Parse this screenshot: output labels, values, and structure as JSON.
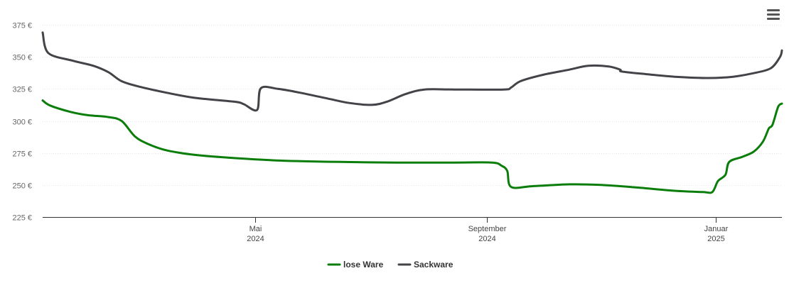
{
  "chart_data": {
    "type": "line",
    "title": "",
    "xlabel": "",
    "ylabel": "",
    "ylim": [
      225,
      375
    ],
    "yticks": [
      225,
      250,
      275,
      300,
      325,
      350,
      375
    ],
    "ytick_labels": [
      "225 €",
      "250 €",
      "275 €",
      "300 €",
      "325 €",
      "350 €",
      "375 €"
    ],
    "xlim": [
      "2024-01-09",
      "2025-02-05"
    ],
    "xticks": [
      {
        "date": "2024-05-01",
        "month": "Mai",
        "year": "2024"
      },
      {
        "date": "2024-09-01",
        "month": "September",
        "year": "2024"
      },
      {
        "date": "2025-01-01",
        "month": "Januar",
        "year": "2025"
      }
    ],
    "grid": "horizontal",
    "legend": "bottom-center",
    "series": [
      {
        "name": "lose Ware",
        "color": "#0a7d0a",
        "points": [
          [
            "2024-01-09",
            316
          ],
          [
            "2024-01-13",
            312
          ],
          [
            "2024-01-24",
            307
          ],
          [
            "2024-02-02",
            304.5
          ],
          [
            "2024-02-13",
            303
          ],
          [
            "2024-02-20",
            300
          ],
          [
            "2024-02-27",
            288
          ],
          [
            "2024-03-05",
            282
          ],
          [
            "2024-03-15",
            277
          ],
          [
            "2024-03-30",
            273.5
          ],
          [
            "2024-04-20",
            271
          ],
          [
            "2024-05-15",
            269
          ],
          [
            "2024-06-15",
            268
          ],
          [
            "2024-07-15",
            267.5
          ],
          [
            "2024-08-15",
            267.5
          ],
          [
            "2024-09-04",
            267.5
          ],
          [
            "2024-09-09",
            265
          ],
          [
            "2024-09-12",
            261
          ],
          [
            "2024-09-14",
            248.5
          ],
          [
            "2024-09-25",
            249
          ],
          [
            "2024-10-15",
            250.5
          ],
          [
            "2024-11-01",
            250
          ],
          [
            "2024-11-20",
            248
          ],
          [
            "2024-12-10",
            245.5
          ],
          [
            "2024-12-25",
            244.5
          ],
          [
            "2024-12-30",
            244.5
          ],
          [
            "2025-01-02",
            253
          ],
          [
            "2025-01-06",
            258
          ],
          [
            "2025-01-08",
            268
          ],
          [
            "2025-01-15",
            272
          ],
          [
            "2025-01-21",
            276
          ],
          [
            "2025-01-26",
            284
          ],
          [
            "2025-01-29",
            294
          ],
          [
            "2025-01-31",
            297
          ],
          [
            "2025-02-03",
            311
          ],
          [
            "2025-02-05",
            313.5
          ]
        ]
      },
      {
        "name": "Sackware",
        "color": "#434348",
        "points": [
          [
            "2024-01-09",
            369
          ],
          [
            "2024-01-12",
            353
          ],
          [
            "2024-01-25",
            347
          ],
          [
            "2024-02-05",
            343
          ],
          [
            "2024-02-13",
            338
          ],
          [
            "2024-02-20",
            331
          ],
          [
            "2024-03-01",
            326.5
          ],
          [
            "2024-03-15",
            322
          ],
          [
            "2024-03-30",
            318
          ],
          [
            "2024-04-20",
            315
          ],
          [
            "2024-04-25",
            313
          ],
          [
            "2024-05-02",
            308.5
          ],
          [
            "2024-05-04",
            325.5
          ],
          [
            "2024-05-13",
            325
          ],
          [
            "2024-05-25",
            322
          ],
          [
            "2024-06-10",
            317
          ],
          [
            "2024-06-20",
            314
          ],
          [
            "2024-07-02",
            312.5
          ],
          [
            "2024-07-10",
            315
          ],
          [
            "2024-07-20",
            321
          ],
          [
            "2024-07-30",
            324.5
          ],
          [
            "2024-08-15",
            324.5
          ],
          [
            "2024-09-10",
            324.5
          ],
          [
            "2024-09-14",
            326
          ],
          [
            "2024-09-19",
            331
          ],
          [
            "2024-10-01",
            336
          ],
          [
            "2024-10-15",
            340
          ],
          [
            "2024-10-25",
            343
          ],
          [
            "2024-11-05",
            342.5
          ],
          [
            "2024-11-11",
            340
          ],
          [
            "2024-11-12",
            338.5
          ],
          [
            "2024-11-25",
            336.5
          ],
          [
            "2024-12-10",
            334.5
          ],
          [
            "2024-12-28",
            333.5
          ],
          [
            "2025-01-10",
            334.5
          ],
          [
            "2025-01-20",
            337
          ],
          [
            "2025-01-30",
            341
          ],
          [
            "2025-02-04",
            350
          ],
          [
            "2025-02-05",
            355
          ]
        ]
      }
    ]
  }
}
